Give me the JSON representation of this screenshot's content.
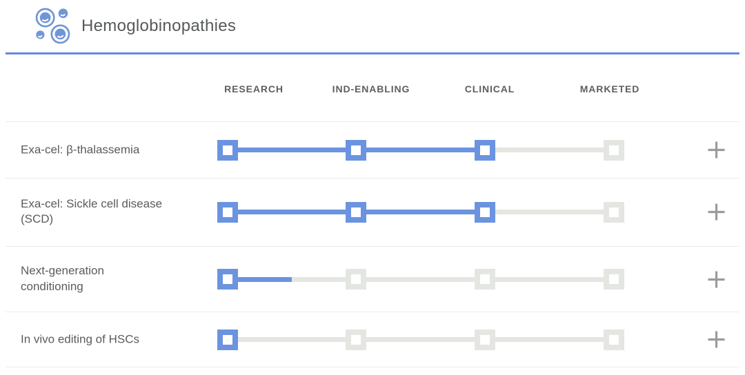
{
  "header": {
    "title": "Hemoglobinopathies",
    "icon": "blood-cells-icon"
  },
  "columns": [
    "RESEARCH",
    "IND-ENABLING",
    "CLINICAL",
    "MARKETED"
  ],
  "rows": [
    {
      "label": "Exa-cel: β-thalassemia",
      "progress": 3,
      "stage_reached": "CLINICAL"
    },
    {
      "label": "Exa-cel: Sickle cell disease (SCD)",
      "progress": 3,
      "stage_reached": "CLINICAL"
    },
    {
      "label": "Next-generation conditioning",
      "progress": 1.5,
      "stage_reached": "RESEARCH"
    },
    {
      "label": "In vivo editing of HSCs",
      "progress": 1,
      "stage_reached": "RESEARCH"
    }
  ],
  "expand_button": {
    "icon": "plus-icon"
  },
  "colors": {
    "accent_blue": "#6b93e0",
    "divider_blue": "#6289dc",
    "track_gray": "#e4e6e2",
    "row_divider_gray": "#ececec",
    "label_text": "#5b5b5b",
    "column_header_text": "#5c605b",
    "title_text": "#56595b",
    "plus_gray": "#9b9b9b"
  },
  "chart_data": {
    "type": "table",
    "title": "Hemoglobinopathies",
    "categories": [
      "RESEARCH",
      "IND-ENABLING",
      "CLINICAL",
      "MARKETED"
    ],
    "series": [
      {
        "name": "Exa-cel: β-thalassemia",
        "progress_value": 3,
        "stages_filled": [
          "RESEARCH",
          "IND-ENABLING",
          "CLINICAL"
        ]
      },
      {
        "name": "Exa-cel: Sickle cell disease (SCD)",
        "progress_value": 3,
        "stages_filled": [
          "RESEARCH",
          "IND-ENABLING",
          "CLINICAL"
        ]
      },
      {
        "name": "Next-generation conditioning",
        "progress_value": 1.5,
        "stages_filled": [
          "RESEARCH"
        ]
      },
      {
        "name": "In vivo editing of HSCs",
        "progress_value": 1,
        "stages_filled": [
          "RESEARCH"
        ]
      }
    ],
    "legend": "none",
    "notes": "progress_value counts stage markers reached; 1.5 means bar extends halfway between RESEARCH and IND-ENABLING"
  }
}
